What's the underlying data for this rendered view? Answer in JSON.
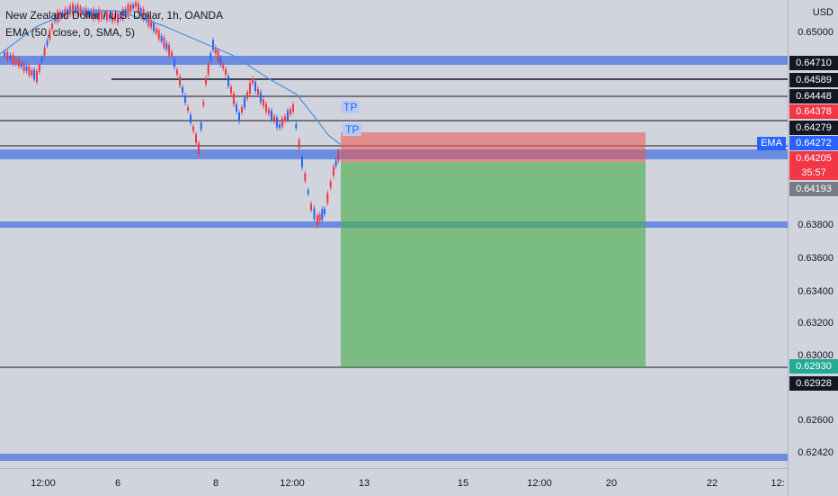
{
  "legend": {
    "symbol": "New Zealand Dollar / U.S. Dollar, 1h, OANDA",
    "indicator": "EMA (50, close, 0, SMA, 5)"
  },
  "currency": "USD",
  "price_ticks": [
    "0.65000",
    "0.63800",
    "0.63600",
    "0.63400",
    "0.63200",
    "0.63000",
    "0.62600",
    "0.62420"
  ],
  "price_tags": [
    {
      "label": "0.64710",
      "bg": "#131722"
    },
    {
      "label": "0.64589",
      "bg": "#131722"
    },
    {
      "label": "0.64448",
      "bg": "#131722"
    },
    {
      "label": "0.64378",
      "bg": "#f23645"
    },
    {
      "label": "0.64279",
      "bg": "#131722"
    },
    {
      "label": "0.64272",
      "bg": "#2962ff"
    },
    {
      "label": "0.64205",
      "bg": "#f23645"
    },
    {
      "label": "35:57",
      "bg": "#f23645"
    },
    {
      "label": "0.64193",
      "bg": "#787b86"
    },
    {
      "label": "0.62930",
      "bg": "#22ab94"
    },
    {
      "label": "0.62928",
      "bg": "#131722"
    }
  ],
  "ema_label": "EMA",
  "tp_labels": [
    "TP",
    "TP"
  ],
  "time_ticks": [
    "12:00",
    "6",
    "8",
    "12:00",
    "13",
    "15",
    "12:00",
    "20",
    "22",
    "12:"
  ],
  "colors": {
    "up": "#2962ff",
    "down": "#f23645",
    "zone": "#5b7fe0",
    "ema": "#4a8fe0",
    "profit": "#4caf50",
    "stop": "#ef5350"
  }
}
